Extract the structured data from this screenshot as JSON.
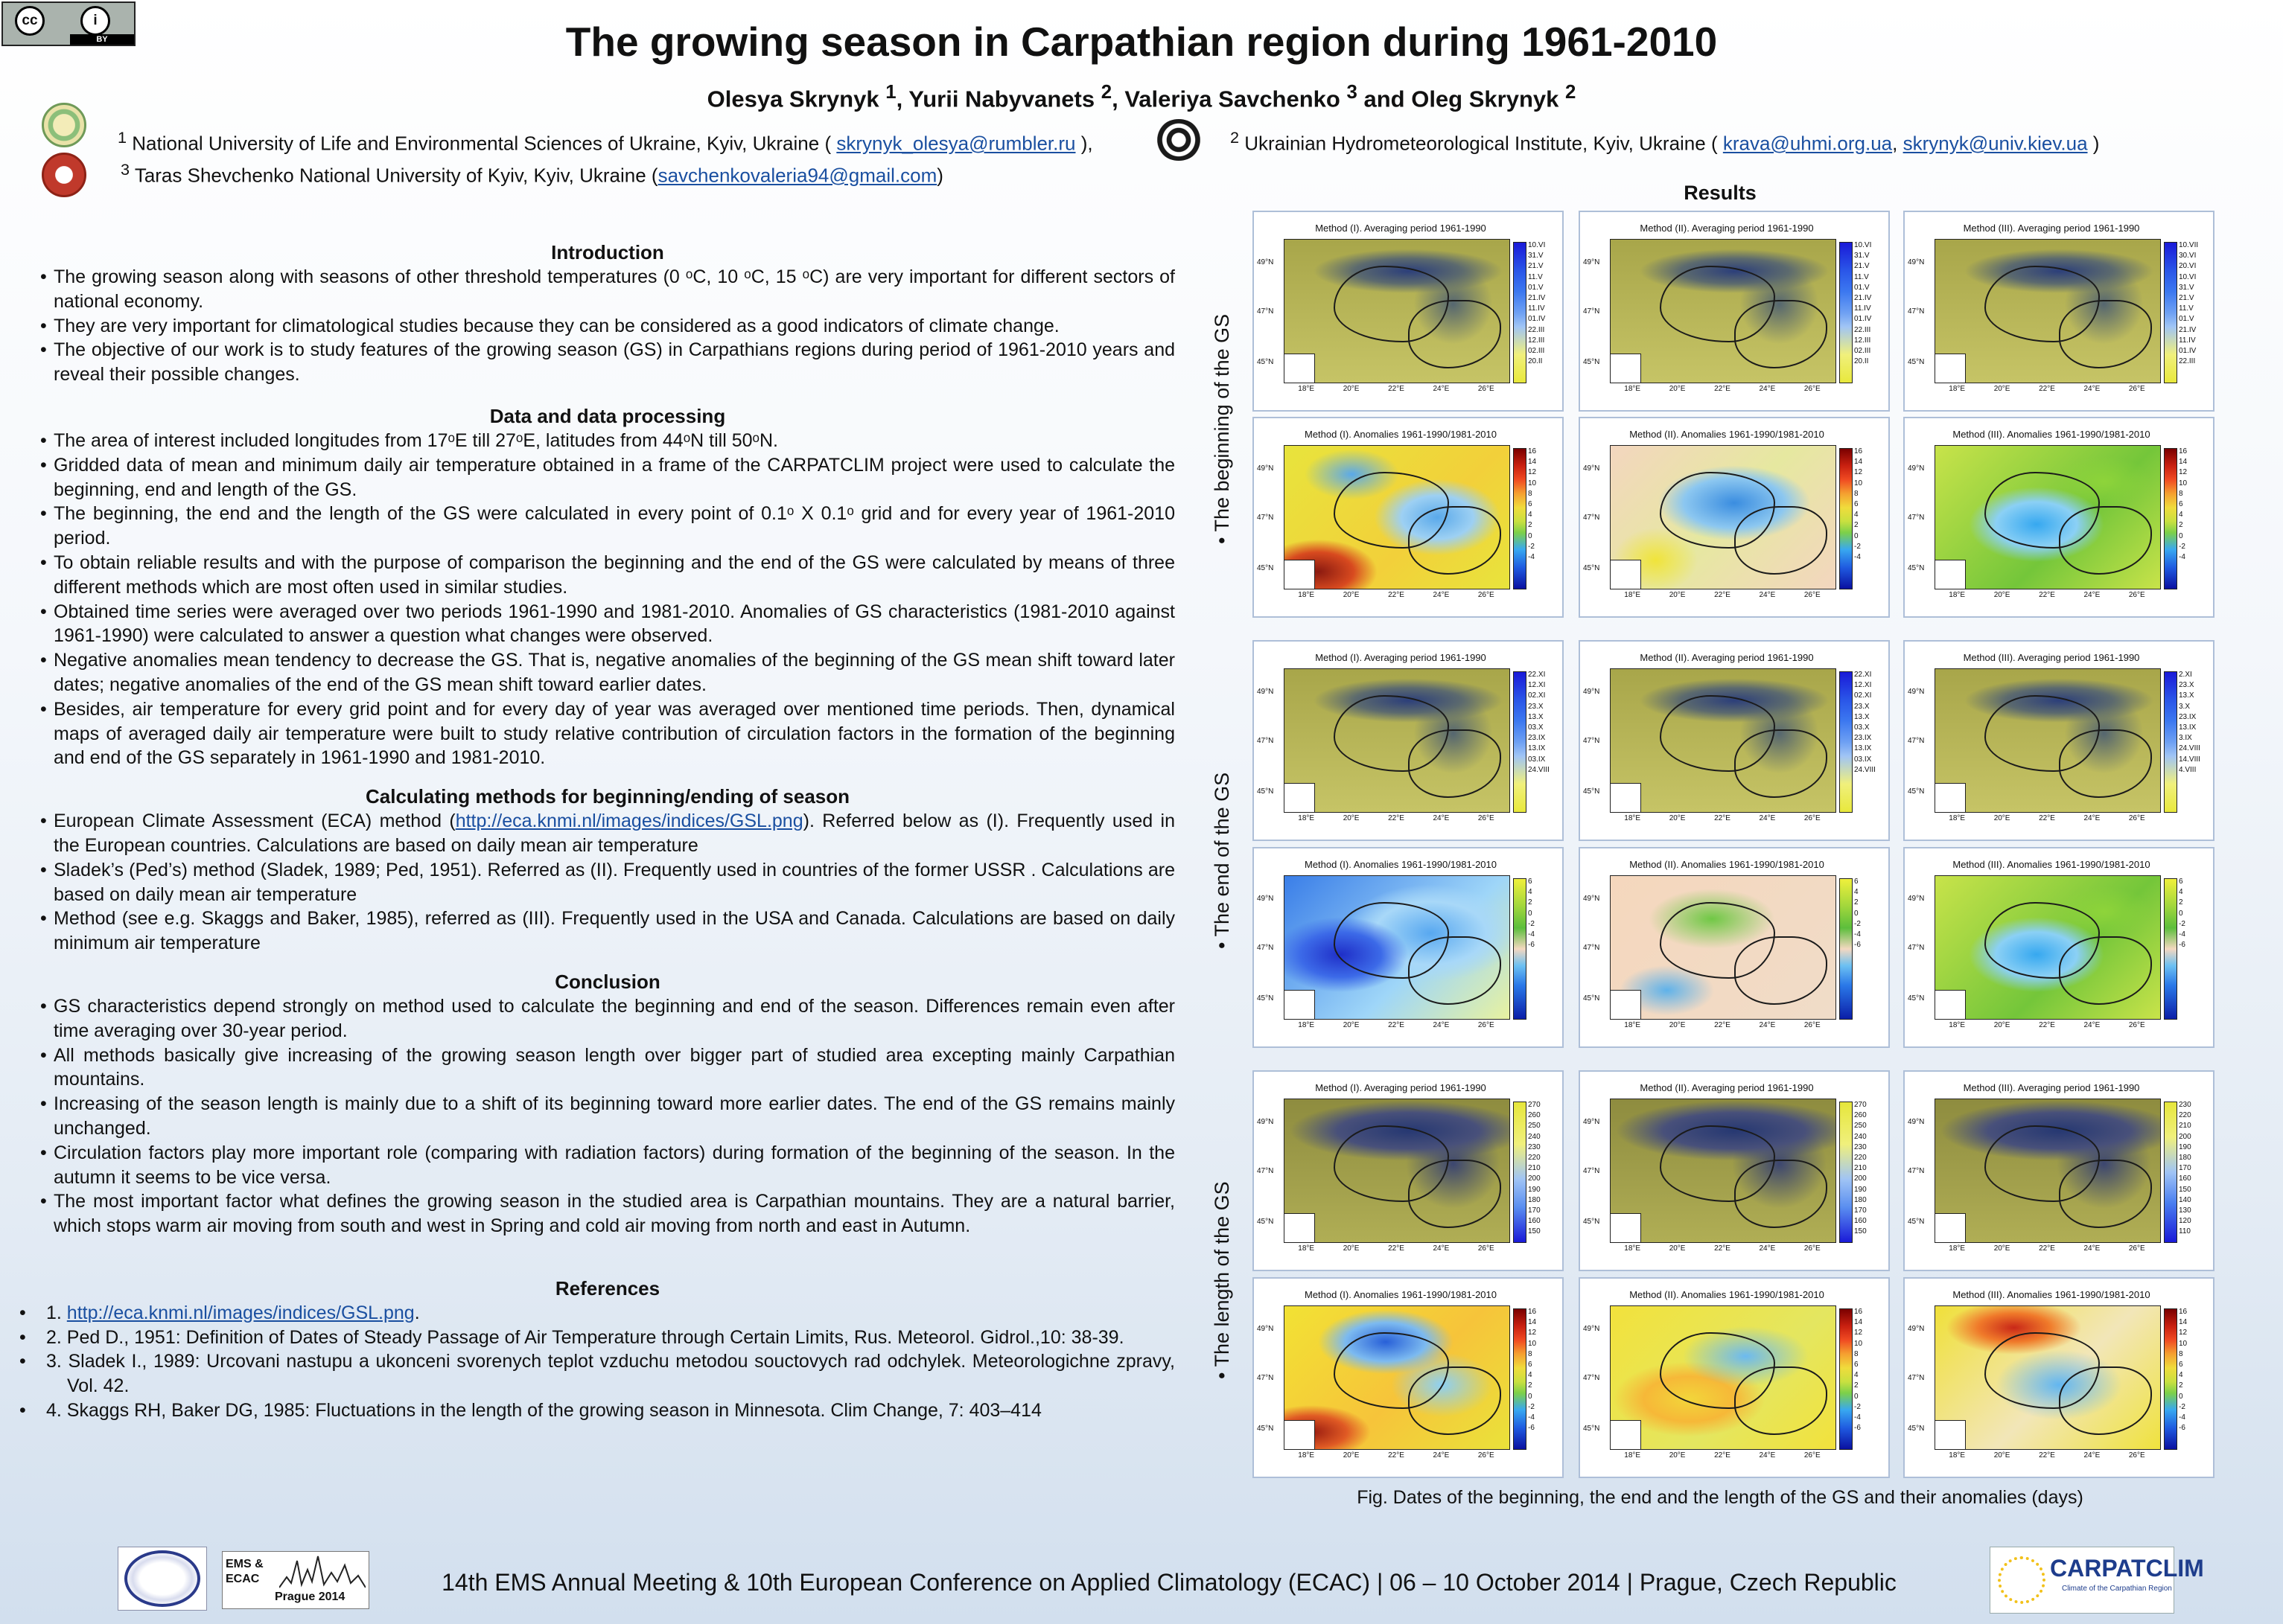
{
  "header": {
    "cc_badge": {
      "cc": "cc",
      "by_icon": "i",
      "label": "BY"
    },
    "title": "The growing season in Carpathian region during 1961-2010",
    "authors": {
      "a1": "Olesya Skrynyk",
      "s1": "1",
      "a2": "Yurii Nabyvanets",
      "s2": "2",
      "a3": "Valeriya Savchenko",
      "s3": "3",
      "a4": "Oleg Skrynyk",
      "s4": "2",
      "sep": ", ",
      "and": " and "
    },
    "affiliations": [
      {
        "sup": "1",
        "text": "National University of Life and Environmental Sciences of Ukraine, Kyiv, Ukraine ( ",
        "email": "skrynyk_olesya@rumbler.ru",
        "after": " ),"
      },
      {
        "sup": "2",
        "text": "Ukrainian Hydrometeorological Institute, Kyiv, Ukraine ( ",
        "email": "krava@uhmi.org.ua",
        "between": ", ",
        "email2": "skrynyk@univ.kiev.ua",
        "after": " )"
      },
      {
        "sup": "3",
        "text": "Taras Shevchenko National University of Kyiv, Kyiv, Ukraine (",
        "email": "savchenkovaleria94@gmail.com",
        "after": ")"
      }
    ]
  },
  "introduction": {
    "heading": "Introduction",
    "items": [
      "The growing season along with seasons of other threshold temperatures (0 ᵒC, 10 ᵒC, 15 ᵒC) are very important for different sectors of national economy.",
      "They are very important for climatological studies because they can be considered as a good indicators of climate change.",
      "The objective of our work is to study features of the growing season (GS) in Carpathians regions during period of 1961-2010 years and reveal their possible changes."
    ]
  },
  "data_processing": {
    "heading": "Data and data processing",
    "items": [
      "The area of interest included longitudes from 17ᵒE till 27ᵒE, latitudes from 44ᵒN till 50ᵒN.",
      "Gridded data of mean and minimum daily air temperature obtained in a frame of the CARPATCLIM project were used to calculate the beginning, end and length of the GS.",
      "The beginning, the end and the length of the GS were calculated in every point of 0.1ᵒ X 0.1ᵒ grid and for every year of 1961-2010 period.",
      "To obtain reliable results and with the purpose of comparison the beginning and the end of the GS were calculated by means of three different methods which are most often used in similar studies.",
      "Obtained time series were averaged over two periods 1961-1990 and 1981-2010. Anomalies of GS characteristics (1981-2010 against 1961-1990) were calculated to answer a question what changes were observed.",
      "Negative anomalies mean tendency to decrease the GS. That is,  negative anomalies of the beginning of the GS mean shift toward later dates; negative anomalies of the end of the GS mean shift toward earlier dates.",
      "Besides, air temperature for every grid point and for every day of year was averaged over mentioned time periods. Then, dynamical maps of averaged daily air temperature were built to study relative contribution of circulation factors in the formation of the beginning and end of the GS separately in 1961-1990 and 1981-2010."
    ]
  },
  "methods": {
    "heading": "Calculating methods for beginning/ending of season",
    "m1_pre": "European Climate Assessment (ECA) method (",
    "m1_link": "http://eca.knmi.nl/images/indices/GSL.png",
    "m1_post": "). Referred below as (I). Frequently used in the European countries. Calculations are based on daily mean air temperature",
    "m2": "Sladek’s (Ped’s) method (Sladek, 1989; Ped, 1951). Referred as (II). Frequently used in countries of the former USSR . Calculations are based on daily mean air temperature",
    "m3": "Method (see e.g. Skaggs and Baker, 1985), referred as (III). Frequently used in the USA and Canada. Calculations are based on daily minimum air temperature"
  },
  "conclusion": {
    "heading": "Conclusion",
    "items": [
      "GS characteristics depend strongly on method used to calculate the beginning and end of the season. Differences remain even after time averaging over 30-year period.",
      "All methods basically give increasing of the growing season length over bigger part of studied area excepting mainly Carpathian mountains.",
      "Increasing of the season length is mainly due to a shift of its beginning toward more earlier dates. The end of the GS remains mainly unchanged.",
      "Circulation factors play more important role (comparing with radiation factors) during formation of the beginning of the season. In the autumn it seems to be vice versa.",
      "The most important factor what defines the growing season in the studied area is Carpathian mountains. They are a natural barrier, which stops warm air moving from south and west in Spring and cold air moving from north and east in Autumn."
    ]
  },
  "references": {
    "heading": "References",
    "r1_num": "1. ",
    "r1_link": "http://eca.knmi.nl/images/indices/GSL.png",
    "r1_post": ".",
    "r2": "2. Ped D., 1951: Definition of Dates of Steady Passage of Air Temperature through Certain Limits, Rus. Meteorol. Gidrol.,10: 38-39.",
    "r3": "3. Sladek I., 1989: Urcovani nastupu a ukonceni svorenych teplot vzduchu metodou souctovych rad odchylek. Meteorologichne zpravy, Vol. 42.",
    "r4": "4. Skaggs RH, Baker DG, 1985: Fluctuations in the length of the growing season in Minnesota. Clim Change, 7: 403–414"
  },
  "results": {
    "heading": "Results",
    "row_labels": [
      "• The beginning of the GS",
      "• The end of the GS",
      "• The length of the GS"
    ],
    "lat_ticks": [
      "49°N",
      "47°N",
      "45°N"
    ],
    "lon_ticks": [
      "18°E",
      "20°E",
      "22°E",
      "24°E",
      "26°E"
    ],
    "panels": [
      {
        "title": "Method (I). Averaging period 1961-1990",
        "legend": [
          "10.VI",
          "31.V",
          "21.V",
          "11.V",
          "01.V",
          "21.IV",
          "11.IV",
          "01.IV",
          "22.III",
          "12.III",
          "02.III",
          "20.II"
        ]
      },
      {
        "title": "Method (II). Averaging period 1961-1990",
        "legend": [
          "10.VI",
          "31.V",
          "21.V",
          "11.V",
          "01.V",
          "21.IV",
          "11.IV",
          "01.IV",
          "22.III",
          "12.III",
          "02.III",
          "20.II"
        ]
      },
      {
        "title": "Method (III). Averaging period 1961-1990",
        "legend": [
          "10.VII",
          "30.VI",
          "20.VI",
          "10.VI",
          "31.V",
          "21.V",
          "11.V",
          "01.V",
          "21.IV",
          "11.IV",
          "01.IV",
          "22.III"
        ]
      },
      {
        "title": "Method (I). Anomalies 1961-1990/1981-2010",
        "legend": [
          "16",
          "14",
          "12",
          "10",
          "8",
          "6",
          "4",
          "2",
          "0",
          "-2",
          "-4"
        ]
      },
      {
        "title": "Method (II). Anomalies 1961-1990/1981-2010",
        "legend": [
          "16",
          "14",
          "12",
          "10",
          "8",
          "6",
          "4",
          "2",
          "0",
          "-2",
          "-4"
        ]
      },
      {
        "title": "Method (III). Anomalies 1961-1990/1981-2010",
        "legend": [
          "16",
          "14",
          "12",
          "10",
          "8",
          "6",
          "4",
          "2",
          "0",
          "-2",
          "-4"
        ]
      },
      {
        "title": "Method (I). Averaging period 1961-1990",
        "legend": [
          "22.XI",
          "12.XI",
          "02.XI",
          "23.X",
          "13.X",
          "03.X",
          "23.IX",
          "13.IX",
          "03.IX",
          "24.VIII"
        ]
      },
      {
        "title": "Method (II). Averaging period 1961-1990",
        "legend": [
          "22.XI",
          "12.XI",
          "02.XI",
          "23.X",
          "13.X",
          "03.X",
          "23.IX",
          "13.IX",
          "03.IX",
          "24.VIII"
        ]
      },
      {
        "title": "Method (III). Averaging period 1961-1990",
        "legend": [
          "2.XI",
          "23.X",
          "13.X",
          "3.X",
          "23.IX",
          "13.IX",
          "3.IX",
          "24.VIII",
          "14.VIII",
          "4.VIII"
        ]
      },
      {
        "title": "Method (I). Anomalies 1961-1990/1981-2010",
        "legend": [
          "6",
          "4",
          "2",
          "0",
          "-2",
          "-4",
          "-6"
        ]
      },
      {
        "title": "Method (II). Anomalies 1961-1990/1981-2010",
        "legend": [
          "6",
          "4",
          "2",
          "0",
          "-2",
          "-4",
          "-6"
        ]
      },
      {
        "title": "Method (III). Anomalies 1961-1990/1981-2010",
        "legend": [
          "6",
          "4",
          "2",
          "0",
          "-2",
          "-4",
          "-6"
        ]
      },
      {
        "title": "Method (I). Averaging period 1961-1990",
        "legend": [
          "270",
          "260",
          "250",
          "240",
          "230",
          "220",
          "210",
          "200",
          "190",
          "180",
          "170",
          "160",
          "150"
        ]
      },
      {
        "title": "Method (II). Averaging period 1961-1990",
        "legend": [
          "270",
          "260",
          "250",
          "240",
          "230",
          "220",
          "210",
          "200",
          "190",
          "180",
          "170",
          "160",
          "150"
        ]
      },
      {
        "title": "Method (III). Averaging period 1961-1990",
        "legend": [
          "230",
          "220",
          "210",
          "200",
          "190",
          "180",
          "170",
          "160",
          "150",
          "140",
          "130",
          "120",
          "110"
        ]
      },
      {
        "title": "Method (I). Anomalies 1961-1990/1981-2010",
        "legend": [
          "16",
          "14",
          "12",
          "10",
          "8",
          "6",
          "4",
          "2",
          "0",
          "-2",
          "-4",
          "-6"
        ]
      },
      {
        "title": "Method (II). Anomalies 1961-1990/1981-2010",
        "legend": [
          "16",
          "14",
          "12",
          "10",
          "8",
          "6",
          "4",
          "2",
          "0",
          "-2",
          "-4",
          "-6"
        ]
      },
      {
        "title": "Method (III). Anomalies 1961-1990/1981-2010",
        "legend": [
          "16",
          "14",
          "12",
          "10",
          "8",
          "6",
          "4",
          "2",
          "0",
          "-2",
          "-4",
          "-6"
        ]
      }
    ],
    "caption": "Fig. Dates of the beginning,  the end and the length of the GS and their anomalies (days)"
  },
  "footer": {
    "text": "14th EMS Annual Meeting & 10th European Conference on Applied Climatology (ECAC) | 06 – 10 October 2014 | Prague, Czech Republic",
    "ecac_logo_lines": [
      "EMS &",
      "ECAC"
    ],
    "ecac_logo_place": "Prague 2014",
    "carpatclim_word": "CARPATCLIM",
    "carpatclim_sub": "Climate of the Carpathian Region"
  }
}
